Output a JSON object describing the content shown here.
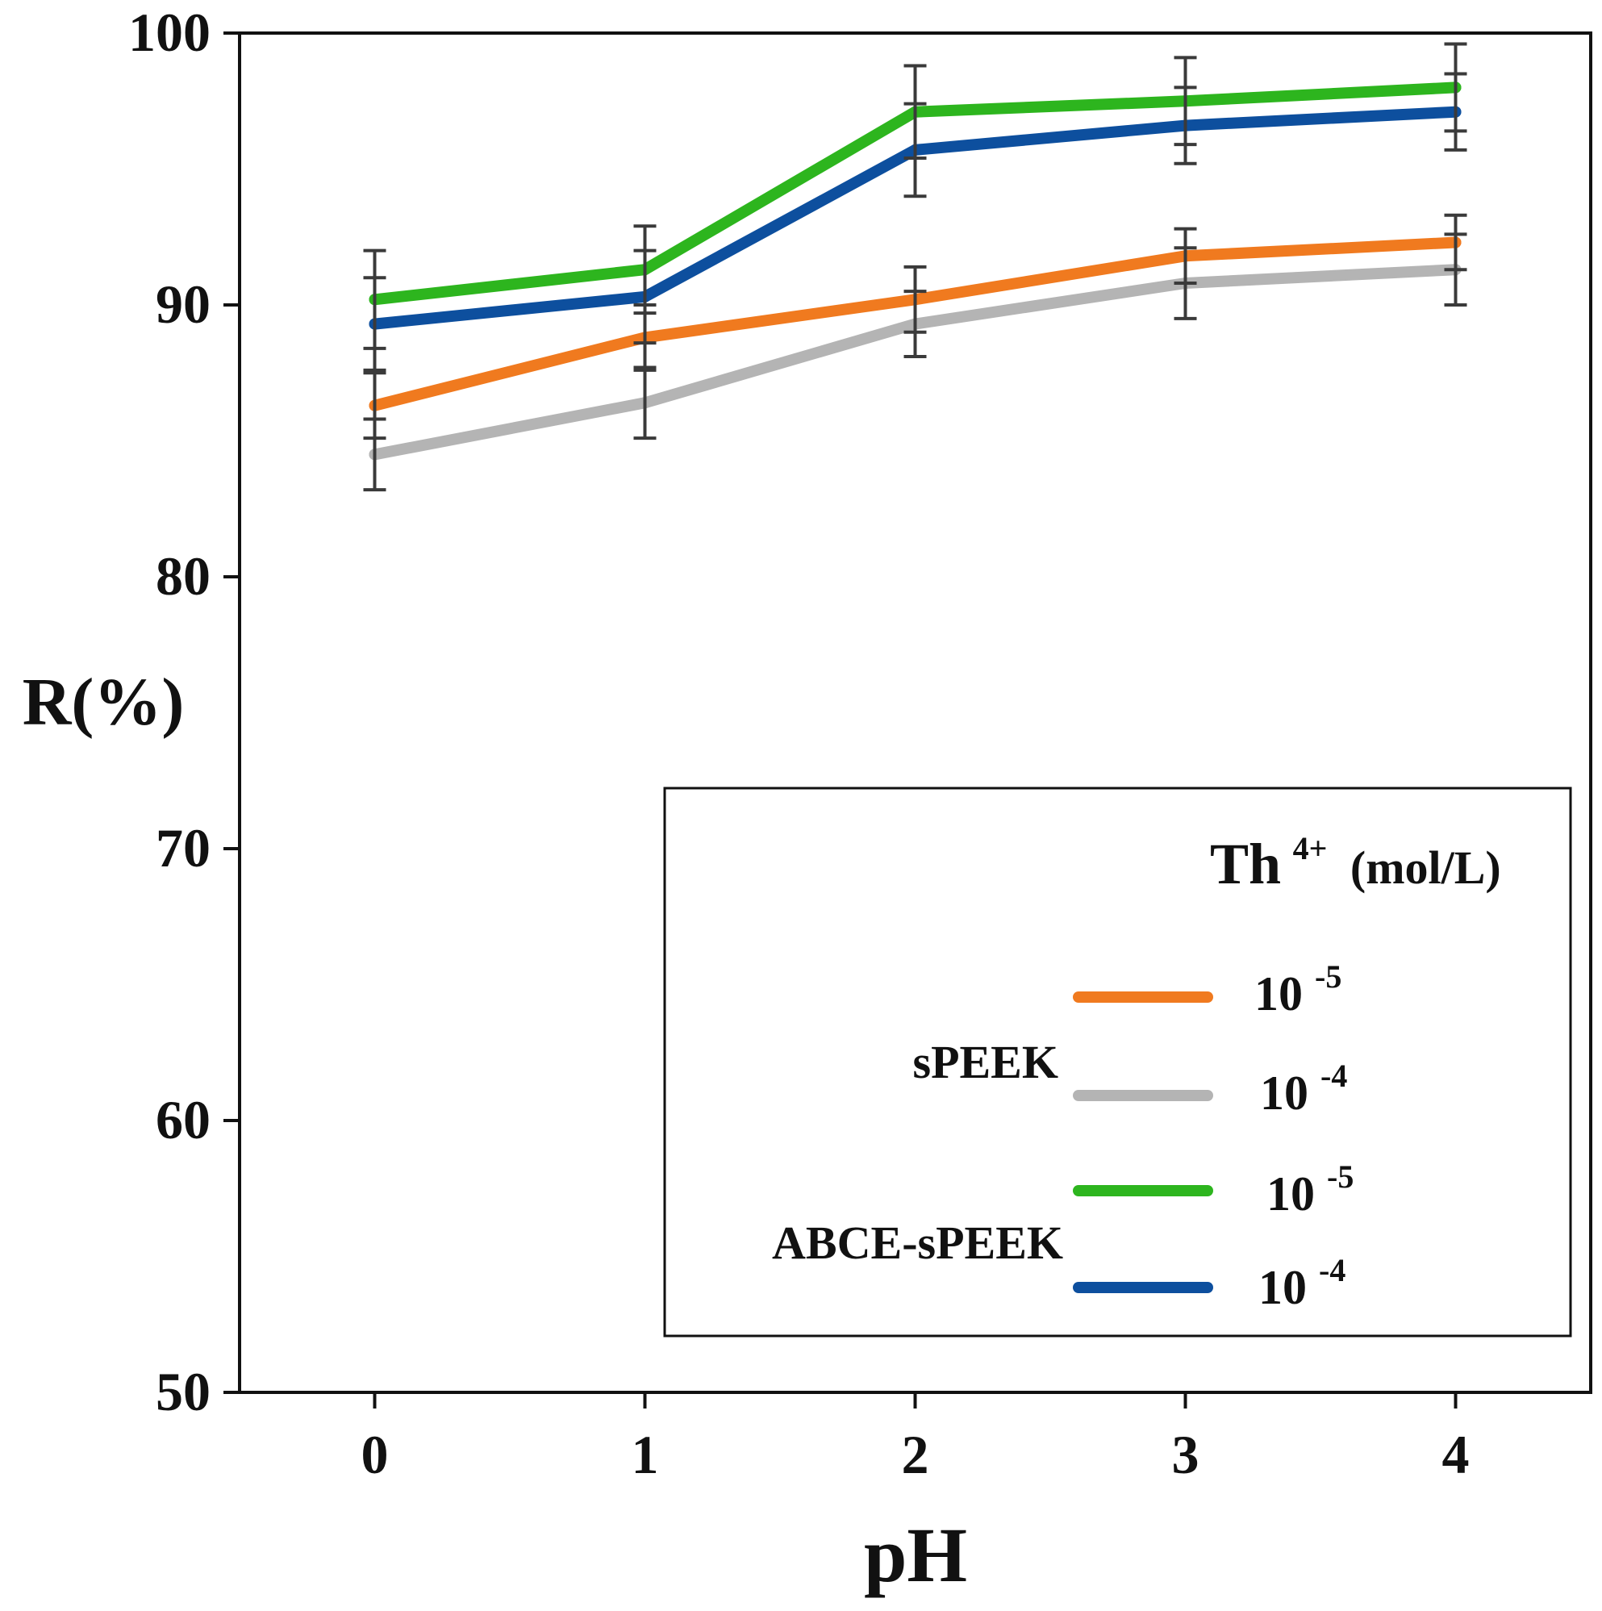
{
  "chart_data": {
    "type": "line",
    "title": "",
    "xlabel": "pH",
    "ylabel": "R(%)",
    "x": [
      0,
      1,
      2,
      3,
      4
    ],
    "x_tick_labels": [
      "0",
      "1",
      "2",
      "3",
      "4"
    ],
    "xlim": [
      -0.5,
      4.5
    ],
    "ylim": [
      50,
      100
    ],
    "y_ticks": [
      50,
      60,
      70,
      80,
      90,
      100
    ],
    "y_tick_labels": [
      "50",
      "60",
      "70",
      "80",
      "90",
      "100"
    ],
    "grid": false,
    "legend": {
      "placement": "bottom-right",
      "title": "Th",
      "title_sup": "4+",
      "title_unit": "(mol/L)",
      "groups": [
        {
          "label": "sPEEK",
          "series_indices": [
            0,
            1
          ]
        },
        {
          "label": "ABCE-sPEEK",
          "series_indices": [
            2,
            3
          ]
        }
      ]
    },
    "series": [
      {
        "name": "sPEEK 10-5",
        "membrane": "sPEEK",
        "base": "10",
        "exponent": "-5",
        "color": "#f07a1f",
        "values": [
          86.3,
          88.8,
          90.2,
          91.8,
          92.3
        ],
        "errors": [
          1.2,
          1.2,
          1.2,
          1.0,
          1.0
        ]
      },
      {
        "name": "sPEEK 10-4",
        "membrane": "sPEEK",
        "base": "10",
        "exponent": "-4",
        "color": "#b4b4b4",
        "values": [
          84.5,
          86.4,
          89.3,
          90.8,
          91.3
        ],
        "errors": [
          1.3,
          1.3,
          1.2,
          1.3,
          1.3
        ]
      },
      {
        "name": "ABCE-sPEEK 10-5",
        "membrane": "ABCE-sPEEK",
        "base": "10",
        "exponent": "-5",
        "color": "#2db51e",
        "values": [
          90.2,
          91.3,
          97.1,
          97.5,
          98.0
        ],
        "errors": [
          1.8,
          1.6,
          1.7,
          1.6,
          1.6
        ]
      },
      {
        "name": "ABCE-sPEEK 10-4",
        "membrane": "ABCE-sPEEK",
        "base": "10",
        "exponent": "-4",
        "color": "#0d4f9e",
        "values": [
          89.3,
          90.3,
          95.7,
          96.6,
          97.1
        ],
        "errors": [
          1.7,
          1.7,
          1.7,
          1.4,
          1.4
        ]
      }
    ]
  }
}
